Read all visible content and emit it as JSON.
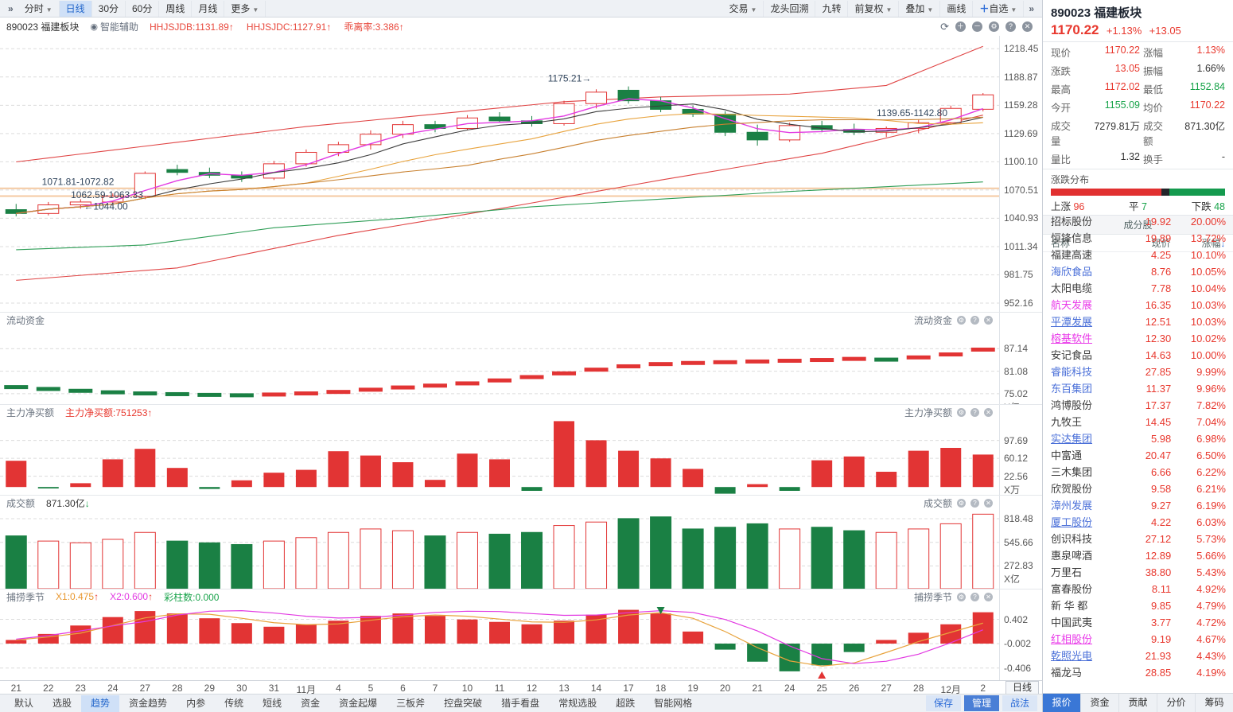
{
  "colors": {
    "up": "#e23434",
    "down": "#1a8044",
    "accent": "#2b6bd7",
    "red_text": "#e8382e",
    "green_text": "#18a34a",
    "orange": "#e8a33d",
    "magenta": "#e23ae2",
    "annotation": "#33475e",
    "support": "#f4c9a2"
  },
  "top_toolbar": {
    "left": [
      {
        "label": "»",
        "chev": true
      },
      {
        "label": "分时",
        "caret": true
      },
      {
        "label": "日线",
        "active": true
      },
      {
        "label": "30分"
      },
      {
        "label": "60分"
      },
      {
        "label": "周线"
      },
      {
        "label": "月线"
      },
      {
        "label": "更多",
        "caret": true
      }
    ],
    "right": [
      {
        "label": "交易",
        "caret": true
      },
      {
        "label": "龙头回溯"
      },
      {
        "label": "九转"
      },
      {
        "label": "前复权",
        "caret": true
      },
      {
        "label": "叠加",
        "caret": true
      },
      {
        "label": "画线"
      },
      {
        "label": "自选",
        "plus": "＋",
        "caret": true
      },
      {
        "label": "»",
        "chev": true
      }
    ]
  },
  "chart_header": {
    "symbol": "890023 福建板块",
    "assistant": "智能辅助",
    "indicators": [
      {
        "text": "HHJSJDB:1131.89",
        "arrow": "up"
      },
      {
        "text": "HHJSJDC:1127.91",
        "arrow": "up"
      },
      {
        "text": "乖离率:3.386",
        "arrow": "up"
      }
    ],
    "window_icons": [
      {
        "name": "refresh-icon",
        "glyph": "⟳"
      },
      {
        "name": "zoom-in-icon",
        "glyph": "＋"
      },
      {
        "name": "zoom-out-icon",
        "glyph": "－"
      },
      {
        "name": "gear-icon",
        "glyph": "⚙"
      },
      {
        "name": "help-icon",
        "glyph": "?"
      },
      {
        "name": "close-icon",
        "glyph": "✕"
      }
    ]
  },
  "chart_data": {
    "type": "candlestick+indicators",
    "x": [
      "21",
      "22",
      "23",
      "24",
      "27",
      "28",
      "29",
      "30",
      "31",
      "11月",
      "4",
      "5",
      "6",
      "7",
      "10",
      "11",
      "12",
      "13",
      "14",
      "17",
      "18",
      "19",
      "20",
      "21",
      "24",
      "25",
      "26",
      "27",
      "28",
      "12月",
      "2"
    ],
    "period_label": "日线",
    "main": {
      "yticks": [
        1218.45,
        1188.87,
        1159.28,
        1129.69,
        1100.1,
        1070.51,
        1040.93,
        1011.34,
        981.75,
        952.16
      ],
      "range": [
        943,
        1232
      ],
      "ohlc": [
        [
          1050,
          1056,
          1043,
          1046
        ],
        [
          1046,
          1058,
          1044,
          1055
        ],
        [
          1055,
          1061,
          1051,
          1058
        ],
        [
          1058,
          1067,
          1054,
          1064
        ],
        [
          1064,
          1090,
          1061,
          1088
        ],
        [
          1092,
          1097,
          1086,
          1089
        ],
        [
          1089,
          1094,
          1083,
          1086
        ],
        [
          1086,
          1090,
          1079,
          1083
        ],
        [
          1083,
          1101,
          1081,
          1098
        ],
        [
          1098,
          1113,
          1095,
          1110
        ],
        [
          1110,
          1121,
          1106,
          1118
        ],
        [
          1118,
          1133,
          1113,
          1129
        ],
        [
          1129,
          1143,
          1125,
          1139
        ],
        [
          1139,
          1143,
          1131,
          1135
        ],
        [
          1135,
          1149,
          1133,
          1146
        ],
        [
          1147,
          1152,
          1141,
          1143
        ],
        [
          1143,
          1148,
          1137,
          1140
        ],
        [
          1140,
          1164,
          1138,
          1161
        ],
        [
          1161,
          1176,
          1156,
          1173
        ],
        [
          1175,
          1179,
          1161,
          1164
        ],
        [
          1164,
          1168,
          1152,
          1155
        ],
        [
          1155,
          1159,
          1147,
          1150
        ],
        [
          1150,
          1153,
          1127,
          1131
        ],
        [
          1131,
          1139,
          1117,
          1123
        ],
        [
          1123,
          1141,
          1121,
          1138
        ],
        [
          1138,
          1143,
          1131,
          1134
        ],
        [
          1134,
          1140,
          1128,
          1131
        ],
        [
          1131,
          1137,
          1126,
          1135
        ],
        [
          1135,
          1144,
          1130,
          1141
        ],
        [
          1141,
          1159,
          1139,
          1156
        ],
        [
          1155.09,
          1172.02,
          1152.84,
          1170.22
        ]
      ],
      "support_lines": [
        {
          "value": 1072.3
        },
        {
          "value": 1064.2
        }
      ],
      "ma_lines": [
        {
          "period": 3,
          "color": "#e23ae2"
        },
        {
          "period": 5,
          "color": "#3c3c3c"
        },
        {
          "period": 10,
          "color": "#e8a33d"
        },
        {
          "period": 15,
          "color": "#c8802f"
        }
      ],
      "band_lines": [
        {
          "color": "#e04545",
          "points": [
            [
              0,
              1100
            ],
            [
              9,
              1137
            ],
            [
              17,
              1163
            ],
            [
              20,
              1168
            ],
            [
              24,
              1171
            ],
            [
              27,
              1180
            ],
            [
              30,
              1221
            ]
          ]
        },
        {
          "color": "#e04545",
          "points": [
            [
              0,
              976
            ],
            [
              5,
              989
            ],
            [
              10,
              1023
            ],
            [
              15,
              1051
            ],
            [
              20,
              1081
            ],
            [
              25,
              1109
            ],
            [
              30,
              1149
            ]
          ]
        },
        {
          "color": "#2f9e57",
          "points": [
            [
              0,
              1008
            ],
            [
              4,
              1013
            ],
            [
              8,
              1031
            ],
            [
              12,
              1041
            ],
            [
              16,
              1053
            ],
            [
              20,
              1061
            ],
            [
              24,
              1069
            ],
            [
              30,
              1079
            ]
          ]
        }
      ],
      "annotations": [
        {
          "text": "1071.81-1072.82",
          "xi": 1.3,
          "value": 1076
        },
        {
          "text": "1062.59-1063.33",
          "xi": 2.2,
          "value": 1062
        },
        {
          "text": "←1044.00",
          "xi": 2.6,
          "value": 1050
        },
        {
          "text": "1175.21→",
          "xi": 17.0,
          "value": 1184
        },
        {
          "text": "1139.65-1142.80",
          "xi": 27.2,
          "value": 1148
        }
      ]
    },
    "liudong": {
      "name": "流动资金",
      "unit": "X亿",
      "yticks": [
        87.14,
        81.08,
        75.02
      ],
      "range": [
        72,
        93
      ],
      "values": [
        76.8,
        76.3,
        75.8,
        75.4,
        75.1,
        74.9,
        74.7,
        74.6,
        74.8,
        75.1,
        75.5,
        76.1,
        76.7,
        77.2,
        77.8,
        78.6,
        79.5,
        80.5,
        81.5,
        82.4,
        83.0,
        83.3,
        83.5,
        83.7,
        83.9,
        84.1,
        84.4,
        84.2,
        84.8,
        85.6,
        86.9
      ]
    },
    "zhuli": {
      "name": "主力净买额",
      "label": "主力净买额:751253",
      "unit": "X万",
      "yticks": [
        97.69,
        60.12,
        22.56
      ],
      "range": [
        -18,
        142
      ],
      "values": [
        55,
        -3,
        8,
        58,
        80,
        40,
        -4,
        14,
        30,
        36,
        75,
        66,
        52,
        15,
        70,
        58,
        -8,
        138,
        98,
        76,
        60,
        38,
        -14,
        6,
        -8,
        56,
        64,
        32,
        76,
        82,
        68
      ]
    },
    "chengjiao": {
      "name": "成交额",
      "label": "871.30亿",
      "unit": "X亿",
      "yticks": [
        818.48,
        545.66,
        272.83
      ],
      "range": [
        0,
        920
      ],
      "values": [
        620,
        560,
        540,
        580,
        660,
        560,
        540,
        520,
        560,
        600,
        660,
        700,
        680,
        620,
        660,
        640,
        660,
        740,
        780,
        820,
        840,
        700,
        720,
        760,
        700,
        720,
        680,
        660,
        700,
        760,
        871
      ]
    },
    "bulao": {
      "name": "捕捞季节",
      "yticks": [
        0.402,
        -0.002,
        -0.406
      ],
      "range": [
        -0.62,
        0.66
      ],
      "params": [
        {
          "text": "X1:0.475",
          "color": "#e8972e",
          "arrow": "up"
        },
        {
          "text": "X2:0.600",
          "color": "#e23ae2",
          "arrow": "up"
        },
        {
          "text": "彩柱数:0.000",
          "color": "#18a34a"
        }
      ],
      "values": [
        0.06,
        0.16,
        0.3,
        0.44,
        0.54,
        0.5,
        0.42,
        0.34,
        0.28,
        0.32,
        0.38,
        0.46,
        0.5,
        0.46,
        0.4,
        0.36,
        0.32,
        0.38,
        0.48,
        0.56,
        0.5,
        0.2,
        -0.1,
        -0.3,
        -0.46,
        -0.36,
        -0.14,
        0.06,
        0.18,
        0.32,
        0.52
      ],
      "signals": [
        {
          "type": "sell",
          "xi": 20
        },
        {
          "type": "buy",
          "xi": 25
        }
      ]
    }
  },
  "quote": {
    "title": "890023 福建板块",
    "price": "1170.22",
    "change_pct": "+1.13%",
    "change": "+13.05",
    "stats": [
      {
        "label": "现价",
        "value": "1170.22",
        "color": "red"
      },
      {
        "label": "涨幅",
        "value": "1.13%",
        "color": "red"
      },
      {
        "label": "涨跌",
        "value": "13.05",
        "color": "red"
      },
      {
        "label": "振幅",
        "value": "1.66%",
        "color": "dark"
      },
      {
        "label": "最高",
        "value": "1172.02",
        "color": "red"
      },
      {
        "label": "最低",
        "value": "1152.84",
        "color": "grn"
      },
      {
        "label": "今开",
        "value": "1155.09",
        "color": "grn"
      },
      {
        "label": "均价",
        "value": "1170.22",
        "color": "red"
      },
      {
        "label": "成交量",
        "value": "7279.81万",
        "color": "dark"
      },
      {
        "label": "成交额",
        "value": "871.30亿",
        "color": "dark"
      },
      {
        "label": "量比",
        "value": "1.32",
        "color": "dark"
      },
      {
        "label": "换手",
        "value": "-",
        "color": "dark"
      }
    ],
    "distribution": {
      "title": "涨跌分布",
      "up_label": "上涨",
      "up": 96,
      "flat_label": "平",
      "flat": 7,
      "down_label": "下跌",
      "down": 48
    },
    "constituents": {
      "title": "成分股",
      "col_name": "名称",
      "col_price": "现价",
      "col_pct": "涨幅",
      "sort_arrow": "↓",
      "rows": [
        {
          "name": "招标股份",
          "price": "19.92",
          "pct": "20.00%",
          "nc": "dark",
          "u": false
        },
        {
          "name": "恒锋信息",
          "price": "19.89",
          "pct": "13.72%",
          "nc": "dark",
          "u": false
        },
        {
          "name": "福建高速",
          "price": "4.25",
          "pct": "10.10%",
          "nc": "dark",
          "u": false
        },
        {
          "name": "海欣食品",
          "price": "8.76",
          "pct": "10.05%",
          "nc": "blue",
          "u": false
        },
        {
          "name": "太阳电缆",
          "price": "7.78",
          "pct": "10.04%",
          "nc": "dark",
          "u": false
        },
        {
          "name": "航天发展",
          "price": "16.35",
          "pct": "10.03%",
          "nc": "magenta",
          "u": false
        },
        {
          "name": "平潭发展",
          "price": "12.51",
          "pct": "10.03%",
          "nc": "blue",
          "u": true
        },
        {
          "name": "榕基软件",
          "price": "12.30",
          "pct": "10.02%",
          "nc": "magenta",
          "u": true
        },
        {
          "name": "安记食品",
          "price": "14.63",
          "pct": "10.00%",
          "nc": "dark",
          "u": false
        },
        {
          "name": "睿能科技",
          "price": "27.85",
          "pct": "9.99%",
          "nc": "blue",
          "u": false
        },
        {
          "name": "东百集团",
          "price": "11.37",
          "pct": "9.96%",
          "nc": "blue",
          "u": false
        },
        {
          "name": "鸿博股份",
          "price": "17.37",
          "pct": "7.82%",
          "nc": "dark",
          "u": false
        },
        {
          "name": "九牧王",
          "price": "14.45",
          "pct": "7.04%",
          "nc": "dark",
          "u": false
        },
        {
          "name": "实达集团",
          "price": "5.98",
          "pct": "6.98%",
          "nc": "blue",
          "u": true
        },
        {
          "name": "中富通",
          "price": "20.47",
          "pct": "6.50%",
          "nc": "dark",
          "u": false
        },
        {
          "name": "三木集团",
          "price": "6.66",
          "pct": "6.22%",
          "nc": "dark",
          "u": false
        },
        {
          "name": "欣贺股份",
          "price": "9.58",
          "pct": "6.21%",
          "nc": "dark",
          "u": false
        },
        {
          "name": "漳州发展",
          "price": "9.27",
          "pct": "6.19%",
          "nc": "blue",
          "u": false
        },
        {
          "name": "厦工股份",
          "price": "4.22",
          "pct": "6.03%",
          "nc": "blue",
          "u": true
        },
        {
          "name": "创识科技",
          "price": "27.12",
          "pct": "5.73%",
          "nc": "dark",
          "u": false
        },
        {
          "name": "惠泉啤酒",
          "price": "12.89",
          "pct": "5.66%",
          "nc": "dark",
          "u": false
        },
        {
          "name": "万里石",
          "price": "38.80",
          "pct": "5.43%",
          "nc": "dark",
          "u": false
        },
        {
          "name": "富春股份",
          "price": "8.11",
          "pct": "4.92%",
          "nc": "dark",
          "u": false
        },
        {
          "name": "新 华 都",
          "price": "9.85",
          "pct": "4.79%",
          "nc": "dark",
          "u": false
        },
        {
          "name": "中国武夷",
          "price": "3.77",
          "pct": "4.72%",
          "nc": "dark",
          "u": false
        },
        {
          "name": "红相股份",
          "price": "9.19",
          "pct": "4.67%",
          "nc": "magenta",
          "u": true
        },
        {
          "name": "乾照光电",
          "price": "21.93",
          "pct": "4.43%",
          "nc": "blue",
          "u": true
        },
        {
          "name": "福龙马",
          "price": "28.85",
          "pct": "4.19%",
          "nc": "dark",
          "u": false
        }
      ]
    },
    "tabs": [
      {
        "label": "报价",
        "active": true
      },
      {
        "label": "资金"
      },
      {
        "label": "贡献"
      },
      {
        "label": "分价"
      },
      {
        "label": "筹码"
      }
    ]
  },
  "bottom_toolbar": {
    "items": [
      {
        "label": "默认"
      },
      {
        "label": "选股"
      },
      {
        "label": "趋势",
        "active": true
      },
      {
        "label": "资金趋势"
      },
      {
        "label": "内参"
      },
      {
        "label": "传统"
      },
      {
        "label": "短线"
      },
      {
        "label": "资金"
      },
      {
        "label": "资金起爆"
      },
      {
        "label": "三板斧"
      },
      {
        "label": "控盘突破"
      },
      {
        "label": "猎手看盘"
      },
      {
        "label": "常规选股"
      },
      {
        "label": "超跌"
      },
      {
        "label": "智能网格"
      }
    ],
    "right": [
      {
        "label": "保存"
      },
      {
        "label": "管理",
        "primary": true
      },
      {
        "label": "战法"
      }
    ]
  }
}
